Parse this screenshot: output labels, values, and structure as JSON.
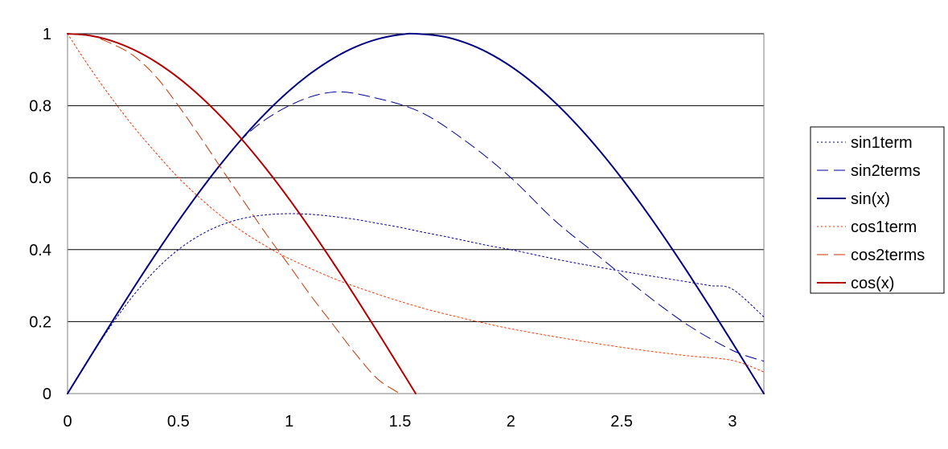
{
  "chart_data": {
    "type": "line",
    "title": "",
    "xlabel": "",
    "ylabel": "",
    "xlim": [
      0,
      3.1416
    ],
    "ylim": [
      0,
      1
    ],
    "x_ticks": [
      "0",
      "0.5",
      "1",
      "1.5",
      "2",
      "2.5",
      "3"
    ],
    "y_ticks": [
      "0",
      "0.2",
      "0.4",
      "0.6",
      "0.8",
      "1"
    ],
    "grid": "horizontal",
    "legend_position": "right",
    "series": [
      {
        "name": "sin1term",
        "color": "#000099",
        "style": "dotted",
        "x": [
          0,
          0.1,
          0.2,
          0.3,
          0.4,
          0.5,
          0.6,
          0.7,
          0.8,
          0.9,
          1.0,
          1.1,
          1.2,
          1.3,
          1.4,
          1.5,
          1.6,
          1.7,
          1.8,
          1.9,
          2.0,
          2.1,
          2.2,
          2.3,
          2.4,
          2.5,
          2.6,
          2.7,
          2.8,
          2.9,
          3.0,
          3.1416
        ],
        "y": [
          0,
          0.099,
          0.192,
          0.275,
          0.345,
          0.4,
          0.441,
          0.47,
          0.488,
          0.497,
          0.5,
          0.498,
          0.492,
          0.484,
          0.473,
          0.462,
          0.449,
          0.437,
          0.424,
          0.411,
          0.4,
          0.387,
          0.374,
          0.362,
          0.351,
          0.34,
          0.33,
          0.32,
          0.31,
          0.3,
          0.29,
          0.213
        ]
      },
      {
        "name": "sin2terms",
        "color": "#000099",
        "style": "dashed",
        "x": [
          0,
          0.2,
          0.4,
          0.6,
          0.8,
          1.0,
          1.2,
          1.4,
          1.6,
          1.8,
          2.0,
          2.2,
          2.4,
          2.6,
          2.8,
          3.0,
          3.1416
        ],
        "y": [
          0,
          0.199,
          0.389,
          0.564,
          0.715,
          0.8,
          0.838,
          0.82,
          0.78,
          0.7,
          0.6,
          0.48,
          0.38,
          0.28,
          0.19,
          0.12,
          0.09
        ]
      },
      {
        "name": "sin(x)",
        "color": "#000080",
        "style": "solid",
        "x": [
          0,
          0.1,
          0.2,
          0.3,
          0.4,
          0.5,
          0.6,
          0.7,
          0.8,
          0.9,
          1.0,
          1.1,
          1.2,
          1.3,
          1.4,
          1.5,
          1.5708,
          1.7,
          1.8,
          1.9,
          2.0,
          2.1,
          2.2,
          2.3,
          2.4,
          2.5,
          2.6,
          2.7,
          2.8,
          2.9,
          3.0,
          3.1,
          3.1416
        ],
        "y": [
          0,
          0.0998,
          0.1987,
          0.2955,
          0.3894,
          0.4794,
          0.5646,
          0.6442,
          0.7174,
          0.7833,
          0.8415,
          0.8912,
          0.932,
          0.9636,
          0.9854,
          0.9975,
          1.0,
          0.9917,
          0.9738,
          0.9463,
          0.9093,
          0.8632,
          0.8085,
          0.7457,
          0.6755,
          0.5985,
          0.5155,
          0.4274,
          0.335,
          0.2392,
          0.1411,
          0.0416,
          0
        ]
      },
      {
        "name": "cos1term",
        "color": "#FF3300",
        "style": "dotted",
        "x": [
          0,
          0.1,
          0.2,
          0.3,
          0.4,
          0.5,
          0.6,
          0.7,
          0.8,
          0.9,
          1.0,
          1.2,
          1.4,
          1.6,
          1.8,
          2.0,
          2.2,
          2.4,
          2.6,
          2.8,
          3.0,
          3.1416
        ],
        "y": [
          1.0,
          0.906,
          0.82,
          0.74,
          0.668,
          0.6,
          0.542,
          0.49,
          0.446,
          0.408,
          0.375,
          0.32,
          0.276,
          0.238,
          0.207,
          0.18,
          0.158,
          0.138,
          0.12,
          0.105,
          0.092,
          0.06
        ]
      },
      {
        "name": "cos2terms",
        "color": "#CC3300",
        "style": "dashed",
        "x": [
          0,
          0.1,
          0.2,
          0.3,
          0.4,
          0.5,
          0.6,
          0.7,
          0.8,
          0.9,
          1.0,
          1.1,
          1.2,
          1.3,
          1.4,
          1.5
        ],
        "y": [
          1.0,
          0.995,
          0.972,
          0.938,
          0.88,
          0.8,
          0.712,
          0.62,
          0.53,
          0.44,
          0.356,
          0.27,
          0.19,
          0.11,
          0.04,
          0.0
        ]
      },
      {
        "name": "cos(x)",
        "color": "#B30000",
        "style": "solid",
        "x": [
          0,
          0.1,
          0.2,
          0.3,
          0.4,
          0.5,
          0.6,
          0.7,
          0.8,
          0.9,
          1.0,
          1.1,
          1.2,
          1.3,
          1.4,
          1.5,
          1.5708
        ],
        "y": [
          1.0,
          0.995,
          0.9801,
          0.9553,
          0.9211,
          0.8776,
          0.8253,
          0.7648,
          0.6967,
          0.6216,
          0.5403,
          0.4536,
          0.3624,
          0.2675,
          0.17,
          0.0707,
          0
        ]
      }
    ]
  }
}
